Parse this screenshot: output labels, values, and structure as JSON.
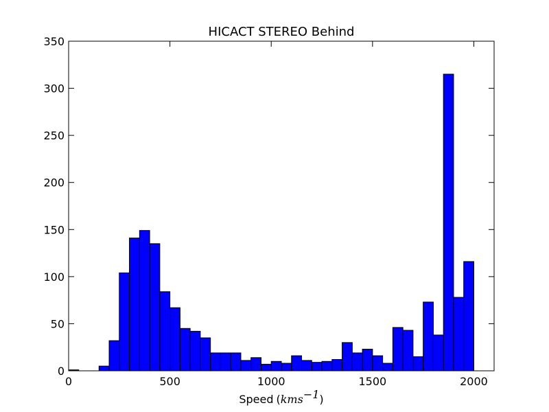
{
  "chart_data": {
    "type": "bar",
    "title": "HICACT STEREO Behind",
    "xlabel": "Speed",
    "xlabel_unit_math": "kms",
    "xlabel_unit_exp": "−1",
    "ylabel": "",
    "xlim": [
      0,
      2100
    ],
    "ylim": [
      0,
      350
    ],
    "xticks": [
      0,
      500,
      1000,
      1500,
      2000
    ],
    "yticks": [
      0,
      50,
      100,
      150,
      200,
      250,
      300,
      350
    ],
    "xtick_labels": [
      "0",
      "500",
      "1000",
      "1500",
      "2000"
    ],
    "ytick_labels": [
      "0",
      "50",
      "100",
      "150",
      "200",
      "250",
      "300",
      "350"
    ],
    "bin_width": 50,
    "bin_start": 0,
    "values": [
      1,
      0,
      0,
      5,
      32,
      104,
      141,
      149,
      135,
      84,
      67,
      45,
      42,
      35,
      19,
      19,
      19,
      11,
      14,
      7,
      10,
      8,
      16,
      11,
      9,
      10,
      12,
      30,
      19,
      23,
      16,
      8,
      46,
      43,
      15,
      73,
      38,
      315,
      78,
      116
    ],
    "grid": false,
    "bar_color": "#0000ff",
    "edge_color": "#000000"
  }
}
